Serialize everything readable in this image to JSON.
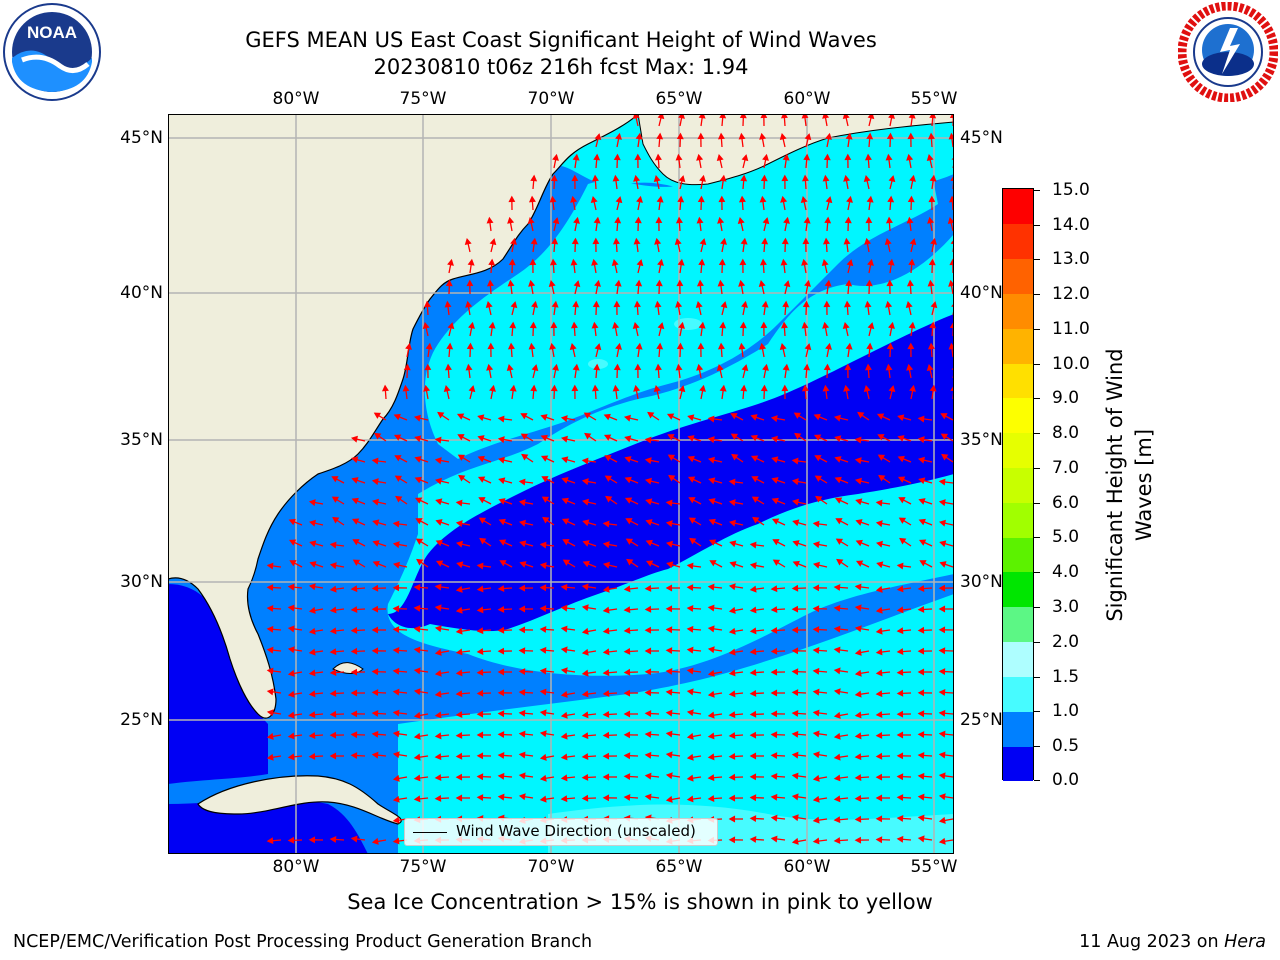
{
  "title": {
    "line1": "GEFS MEAN US East Coast Significant Height of Wind Waves",
    "line2": "20230810 t06z 216h fcst   Max: 1.94"
  },
  "logos": {
    "left": {
      "icon": "noaa-logo",
      "text": "NOAA",
      "ring_text": "NATIONAL OCEANIC AND ATMOSPHERIC ADMINISTRATION · U.S. DEPARTMENT OF COMMERCE"
    },
    "right": {
      "icon": "nws-logo",
      "ring_text": "NATIONAL WEATHER SERVICE"
    }
  },
  "map": {
    "lon_labels": [
      "80°W",
      "75°W",
      "70°W",
      "65°W",
      "60°W",
      "55°W"
    ],
    "lat_labels": [
      "45°N",
      "40°N",
      "35°N",
      "30°N",
      "25°N"
    ],
    "legend_label": "Wind Wave Direction (unscaled)",
    "colors": {
      "land": "#efeedc",
      "ocean_0_0.5": "#0000f4",
      "ocean_0.5_1.0": "#0080ff",
      "ocean_1.0_1.5": "#00f6ff",
      "ocean_1.5_2.0": "#47fbff",
      "arrow": "#ff0000",
      "grid": "#b4b4b4"
    }
  },
  "colorbar": {
    "label": "Significant Height of Wind Waves [m]",
    "label_line1": "Significant Height of Wind",
    "label_line2": "Waves [m]",
    "ticks": [
      "15.0",
      "14.0",
      "13.0",
      "12.0",
      "11.0",
      "10.0",
      "9.0",
      "8.0",
      "7.0",
      "6.0",
      "5.0",
      "4.0",
      "3.0",
      "2.0",
      "1.5",
      "1.0",
      "0.5",
      "0.0"
    ],
    "colors": [
      "#fe0000",
      "#ff3200",
      "#ff6200",
      "#ff8c00",
      "#ffb300",
      "#ffe000",
      "#fdff00",
      "#e6ff00",
      "#c8ff00",
      "#a1ff00",
      "#5cf200",
      "#00e600",
      "#5cf785",
      "#aefeff",
      "#47fbff",
      "#00f6ff",
      "#0080ff",
      "#0000f4"
    ]
  },
  "ice_note": "Sea Ice Concentration > 15% is shown in pink to yellow",
  "footer": {
    "left": "NCEP/EMC/Verification Post Processing Product Generation Branch",
    "date": "11 Aug 2023 on ",
    "host": "Hera"
  }
}
